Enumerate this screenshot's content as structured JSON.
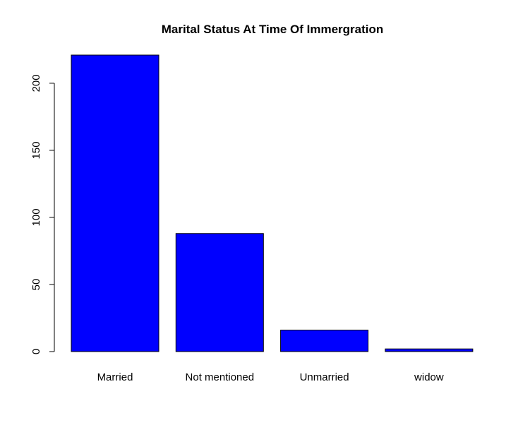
{
  "chart_data": {
    "type": "bar",
    "title": "Marital Status At Time Of Immergration",
    "xlabel": "",
    "ylabel": "",
    "categories": [
      "Married",
      "Not mentioned",
      "Unmarried",
      "widow"
    ],
    "values": [
      221,
      88,
      16,
      2
    ],
    "ylim": [
      0,
      221
    ],
    "yticks": [
      0,
      50,
      100,
      150,
      200
    ],
    "bar_color": "#0000ff",
    "grid": false,
    "legend": "none"
  }
}
